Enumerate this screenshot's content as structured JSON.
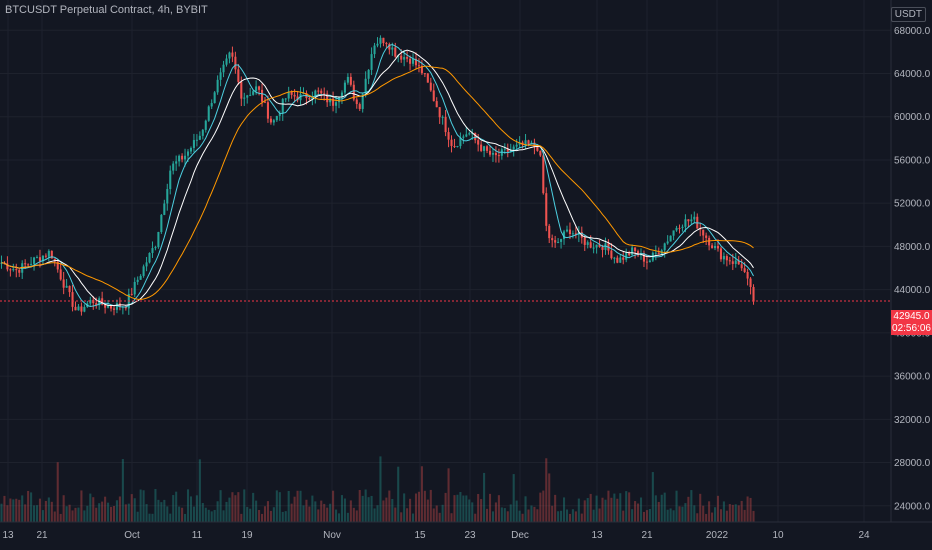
{
  "header": {
    "title": "BTCUSDT Perpetual Contract, 4h, BYBIT",
    "quote_unit": "USDT"
  },
  "last_price": {
    "label": "42945.0",
    "countdown": "02:56:06",
    "value": 42945
  },
  "colors": {
    "background": "#131722",
    "grid": "#1e222d",
    "up": "#26a69a",
    "down": "#ef5350",
    "ema_fast": "#4dd0e1",
    "ema_mid": "#ffffff",
    "ema_slow": "#ff9800",
    "last_price": "#f23645",
    "axis_text": "#b2b5be"
  },
  "chart_data": {
    "type": "line",
    "chart_style": "candlestick with moving averages and volume",
    "x_ticks": [
      "13",
      "21",
      "Oct",
      "11",
      "19",
      "Nov",
      "15",
      "23",
      "Dec",
      "13",
      "21",
      "2022",
      "10",
      "24"
    ],
    "y_ticks": [
      "68000.0",
      "64000.0",
      "60000.0",
      "56000.0",
      "52000.0",
      "48000.0",
      "44000.0",
      "40000.0",
      "36000.0",
      "32000.0",
      "28000.0",
      "24000.0"
    ],
    "ylim": [
      22500,
      70800
    ],
    "price_path": {
      "description": "approximate 4h close path read from chart (x index = relative time 0..1 of visible candles)",
      "points": [
        [
          0.0,
          46500
        ],
        [
          0.02,
          45800
        ],
        [
          0.04,
          46600
        ],
        [
          0.065,
          47500
        ],
        [
          0.085,
          44200
        ],
        [
          0.1,
          41900
        ],
        [
          0.12,
          43000
        ],
        [
          0.145,
          42400
        ],
        [
          0.165,
          42600
        ],
        [
          0.185,
          45500
        ],
        [
          0.205,
          48300
        ],
        [
          0.225,
          55300
        ],
        [
          0.245,
          56500
        ],
        [
          0.265,
          58400
        ],
        [
          0.285,
          62800
        ],
        [
          0.305,
          65900
        ],
        [
          0.32,
          61800
        ],
        [
          0.34,
          62700
        ],
        [
          0.36,
          59300
        ],
        [
          0.38,
          62000
        ],
        [
          0.4,
          61800
        ],
        [
          0.42,
          62300
        ],
        [
          0.44,
          61200
        ],
        [
          0.46,
          63500
        ],
        [
          0.475,
          60700
        ],
        [
          0.495,
          66800
        ],
        [
          0.51,
          67200
        ],
        [
          0.525,
          65800
        ],
        [
          0.545,
          65300
        ],
        [
          0.56,
          64100
        ],
        [
          0.58,
          60800
        ],
        [
          0.6,
          57300
        ],
        [
          0.62,
          58600
        ],
        [
          0.64,
          57000
        ],
        [
          0.655,
          56200
        ],
        [
          0.675,
          56900
        ],
        [
          0.695,
          57400
        ],
        [
          0.715,
          57200
        ],
        [
          0.725,
          49300
        ],
        [
          0.735,
          48000
        ],
        [
          0.755,
          49600
        ],
        [
          0.78,
          48200
        ],
        [
          0.8,
          48100
        ],
        [
          0.82,
          46700
        ],
        [
          0.84,
          47600
        ],
        [
          0.86,
          46600
        ],
        [
          0.88,
          48100
        ],
        [
          0.9,
          50100
        ],
        [
          0.92,
          50500
        ],
        [
          0.94,
          48600
        ],
        [
          0.955,
          47300
        ],
        [
          0.97,
          46700
        ],
        [
          0.985,
          46200
        ],
        [
          1.0,
          43000
        ]
      ]
    },
    "moving_averages": [
      {
        "color_key": "ema_fast",
        "lag": 2
      },
      {
        "color_key": "ema_mid",
        "lag": 4
      },
      {
        "color_key": "ema_slow",
        "lag": 9
      }
    ],
    "last_price_line": 42945
  }
}
